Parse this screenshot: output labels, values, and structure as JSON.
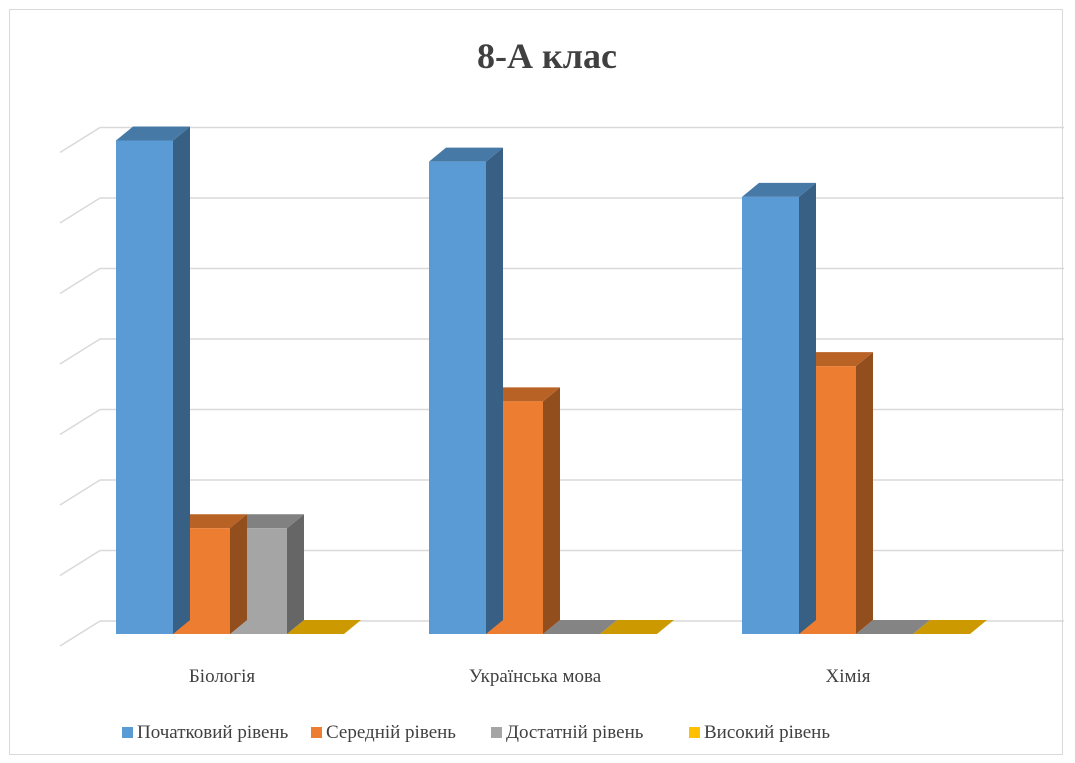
{
  "chart_data": {
    "type": "bar",
    "title": "8-А клас",
    "categories": [
      "Біологія",
      "Українська мова",
      "Хімія"
    ],
    "series": [
      {
        "name": "Початковий рівень",
        "color": "#5b9bd5",
        "values": [
          7,
          6.7,
          6.2
        ]
      },
      {
        "name": "Середній рівень",
        "color": "#ed7d31",
        "values": [
          1.5,
          3.3,
          3.8
        ]
      },
      {
        "name": "Достатній рівень",
        "color": "#a5a5a5",
        "values": [
          1.5,
          0,
          0
        ]
      },
      {
        "name": "Високий рівень",
        "color": "#ffc000",
        "values": [
          0,
          0,
          0
        ]
      }
    ],
    "ylim": [
      0,
      7
    ],
    "grid": true,
    "legend": "bottom",
    "xlabel": "",
    "ylabel": ""
  }
}
